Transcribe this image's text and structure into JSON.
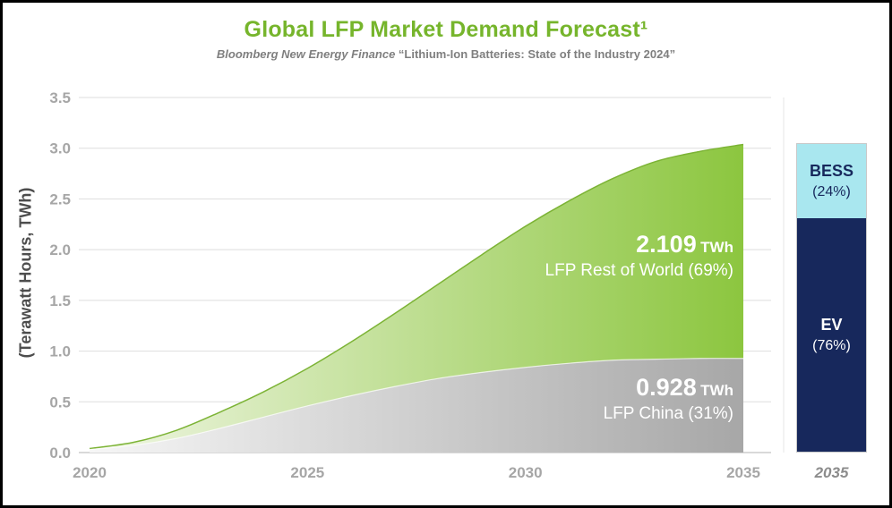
{
  "title": "Global LFP Market Demand Forecast¹",
  "subtitle": {
    "source": "Bloomberg New Energy Finance",
    "report": " “Lithium-Ion Batteries: State of the Industry 2024”"
  },
  "axes": {
    "y_label": "(Terawatt Hours, TWh)",
    "y_ticks": [
      "0.0",
      "0.5",
      "1.0",
      "1.5",
      "2.0",
      "2.5",
      "3.0",
      "3.5"
    ],
    "x_ticks": [
      "2020",
      "2025",
      "2030",
      "2035"
    ],
    "y_max": 3.5
  },
  "chart_data": {
    "type": "area",
    "stacked": true,
    "title": "Global LFP Market Demand Forecast",
    "x": [
      2020,
      2021,
      2022,
      2023,
      2024,
      2025,
      2026,
      2027,
      2028,
      2029,
      2030,
      2031,
      2032,
      2033,
      2034,
      2035
    ],
    "series": [
      {
        "name": "LFP China",
        "values": [
          0.03,
          0.07,
          0.14,
          0.24,
          0.35,
          0.46,
          0.56,
          0.65,
          0.73,
          0.79,
          0.84,
          0.88,
          0.91,
          0.92,
          0.928,
          0.928
        ]
      },
      {
        "name": "LFP Rest of World",
        "values": [
          0.01,
          0.03,
          0.08,
          0.16,
          0.25,
          0.37,
          0.53,
          0.72,
          0.93,
          1.16,
          1.39,
          1.6,
          1.79,
          1.95,
          2.04,
          2.109
        ]
      }
    ],
    "ylim": [
      0,
      3.5
    ],
    "x_tick_years": [
      2020,
      2025,
      2030,
      2035
    ],
    "grid": true,
    "totals_2035": {
      "total_twh": 3.037,
      "china_twh": 0.928,
      "rest_of_world_twh": 2.109
    }
  },
  "annotations": {
    "rest": {
      "value": "2.109",
      "unit": "TWh",
      "label": "LFP Rest of World (69%)"
    },
    "china": {
      "value": "0.928",
      "unit": "TWh",
      "label": "LFP China (31%)"
    }
  },
  "bar_2035": {
    "year_label": "2035",
    "segments": [
      {
        "name": "BESS",
        "pct_label": "(24%)",
        "pct": 24
      },
      {
        "name": "EV",
        "pct_label": "(76%)",
        "pct": 76
      }
    ]
  },
  "colors": {
    "title_green": "#76b52c",
    "green_area_start": "#f0f6e4",
    "green_area_end": "#8cc63f",
    "green_edge": "#7cb335",
    "gray_area_start": "#f6f6f6",
    "gray_area_end": "#a7a7a7",
    "grid": "#dedede",
    "axis_zero": "#b3b3b3",
    "tick_text": "#a6a6a6",
    "bess_fill": "#a9e7ef",
    "ev_fill": "#17285c",
    "bess_text": "#17285c",
    "ev_text": "#ffffff"
  }
}
